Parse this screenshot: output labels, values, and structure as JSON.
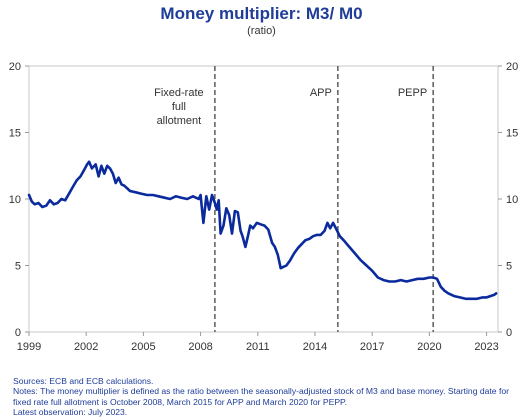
{
  "chart_data": {
    "type": "line",
    "title": "Money multiplier: M3/ M0",
    "subtitle": "(ratio)",
    "xlim": [
      1999.0,
      2023.6
    ],
    "ylim": [
      0,
      20
    ],
    "y_ticks": [
      0,
      5,
      10,
      15,
      20
    ],
    "x_ticks": [
      1999,
      2002,
      2005,
      2008,
      2011,
      2014,
      2017,
      2020,
      2023
    ],
    "grid": false,
    "colors": {
      "line": "#0a2a9e",
      "marker": "#666666",
      "title": "#1f3d99"
    },
    "annotations": [
      {
        "x": 2008.75,
        "lines": [
          "Fixed-rate",
          "full",
          "allotment"
        ]
      },
      {
        "x": 2015.2,
        "lines": [
          "APP"
        ]
      },
      {
        "x": 2020.2,
        "lines": [
          "PEPP"
        ]
      }
    ],
    "series": [
      {
        "x": [
          1999.0,
          1999.15,
          1999.3,
          1999.5,
          1999.7,
          1999.9,
          2000.1,
          2000.3,
          2000.5,
          2000.7,
          2000.9,
          2001.1,
          2001.3,
          2001.5,
          2001.7,
          2001.9,
          2002.05,
          2002.15,
          2002.3,
          2002.5,
          2002.65,
          2002.8,
          2002.95,
          2003.1,
          2003.25,
          2003.4,
          2003.55,
          2003.7,
          2003.85,
          2004.0,
          2004.3,
          2004.6,
          2004.9,
          2005.2,
          2005.5,
          2005.8,
          2006.1,
          2006.4,
          2006.7,
          2007.0,
          2007.3,
          2007.6,
          2007.9,
          2008.0,
          2008.05,
          2008.15,
          2008.3,
          2008.45,
          2008.6,
          2008.75,
          2008.85,
          2008.95,
          2009.05,
          2009.2,
          2009.35,
          2009.5,
          2009.65,
          2009.8,
          2009.95,
          2010.1,
          2010.2,
          2010.35,
          2010.5,
          2010.6,
          2010.75,
          2010.95,
          2011.15,
          2011.35,
          2011.55,
          2011.75,
          2011.9,
          2012.05,
          2012.2,
          2012.35,
          2012.5,
          2012.7,
          2012.9,
          2013.1,
          2013.3,
          2013.5,
          2013.7,
          2013.9,
          2014.1,
          2014.3,
          2014.5,
          2014.65,
          2014.8,
          2014.95,
          2015.1,
          2015.3,
          2015.5,
          2015.8,
          2016.1,
          2016.4,
          2016.7,
          2017.0,
          2017.3,
          2017.6,
          2017.9,
          2018.2,
          2018.5,
          2018.8,
          2019.1,
          2019.4,
          2019.7,
          2020.0,
          2020.2,
          2020.4,
          2020.6,
          2020.8,
          2021.0,
          2021.3,
          2021.6,
          2021.9,
          2022.2,
          2022.5,
          2022.8,
          2023.0,
          2023.2,
          2023.4,
          2023.5
        ],
        "values": [
          10.3,
          9.8,
          9.6,
          9.7,
          9.4,
          9.5,
          9.9,
          9.6,
          9.7,
          10.0,
          9.9,
          10.4,
          10.9,
          11.4,
          11.7,
          12.2,
          12.6,
          12.8,
          12.3,
          12.6,
          11.7,
          12.5,
          11.9,
          12.5,
          12.3,
          11.9,
          11.2,
          11.6,
          11.1,
          11.0,
          10.6,
          10.5,
          10.4,
          10.3,
          10.3,
          10.2,
          10.1,
          10.0,
          10.2,
          10.1,
          10.0,
          10.2,
          10.0,
          10.3,
          9.6,
          8.2,
          10.2,
          9.2,
          10.3,
          9.7,
          9.2,
          9.9,
          7.4,
          8.0,
          9.3,
          8.8,
          7.4,
          9.1,
          9.0,
          7.6,
          7.2,
          6.4,
          7.3,
          8.0,
          7.8,
          8.2,
          8.1,
          8.0,
          7.7,
          6.7,
          6.4,
          5.8,
          4.8,
          4.9,
          5.0,
          5.4,
          5.9,
          6.3,
          6.6,
          6.9,
          7.0,
          7.2,
          7.3,
          7.3,
          7.6,
          8.2,
          7.8,
          8.2,
          7.8,
          7.2,
          6.9,
          6.4,
          5.9,
          5.4,
          5.0,
          4.6,
          4.1,
          3.9,
          3.8,
          3.8,
          3.9,
          3.8,
          3.9,
          4.0,
          4.0,
          4.1,
          4.1,
          4.0,
          3.4,
          3.1,
          2.9,
          2.7,
          2.6,
          2.5,
          2.5,
          2.5,
          2.6,
          2.6,
          2.7,
          2.8,
          2.9
        ]
      }
    ]
  },
  "notes": {
    "sources": "Sources: ECB and ECB calculations.",
    "notes": "Notes: The money multiplier is defined as the ratio between the seasonally-adjusted stock of M3 and base money. Starting date for fixed rate full allotment is October 2008, March 2015 for APP and March 2020 for PEPP.",
    "latest": "Latest observation: July 2023."
  }
}
